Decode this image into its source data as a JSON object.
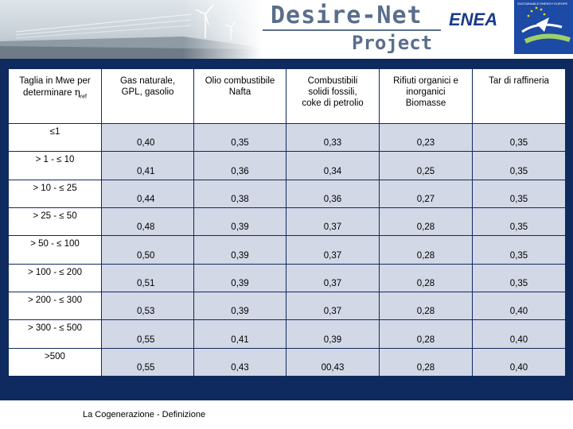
{
  "header": {
    "title_line1": "Desire-Net",
    "title_line2": "Project",
    "partner_logo": "ENEA",
    "eu_logo_caption": "SUSTAINABLE ENERGY EUROPE"
  },
  "table": {
    "first_header_line1": "Taglia in Mwe per",
    "first_header_line2_prefix": "determinare ",
    "first_header_symbol": "η",
    "first_header_subscript": "ref",
    "columns": [
      [
        "Gas naturale,",
        "GPL, gasolio"
      ],
      [
        "Olio combustibile",
        "Nafta"
      ],
      [
        "Combustibili",
        "solidi fossili,",
        "coke di petrolio"
      ],
      [
        "Rifiuti organici e",
        "inorganici",
        "Biomasse"
      ],
      [
        "Tar di raffineria"
      ]
    ],
    "rows": [
      {
        "label": "≤1",
        "values": [
          "0,40",
          "0,35",
          "0,33",
          "0,23",
          "0,35"
        ]
      },
      {
        "label": "> 1 - ≤ 10",
        "values": [
          "0,41",
          "0,36",
          "0,34",
          "0,25",
          "0,35"
        ]
      },
      {
        "label": "> 10 - ≤ 25",
        "values": [
          "0,44",
          "0,38",
          "0,36",
          "0,27",
          "0,35"
        ]
      },
      {
        "label": "> 25 - ≤ 50",
        "values": [
          "0,48",
          "0,39",
          "0,37",
          "0,28",
          "0,35"
        ]
      },
      {
        "label": "> 50 - ≤ 100",
        "values": [
          "0,50",
          "0,39",
          "0,37",
          "0,28",
          "0,35"
        ]
      },
      {
        "label": "> 100 - ≤ 200",
        "values": [
          "0,51",
          "0,39",
          "0,37",
          "0,28",
          "0,35"
        ]
      },
      {
        "label": "> 200 - ≤ 300",
        "values": [
          "0,53",
          "0,39",
          "0,37",
          "0,28",
          "0,40"
        ]
      },
      {
        "label": "> 300 - ≤ 500",
        "values": [
          "0,55",
          "0,41",
          "0,39",
          "0,28",
          "0,40"
        ]
      },
      {
        "label": ">500",
        "values": [
          "0,55",
          "0,43",
          "00,43",
          "0,28",
          "0,40"
        ]
      }
    ]
  },
  "footer": {
    "text": "La Cogenerazione - Definizione"
  },
  "colors": {
    "panel_background": "#0f2a5e",
    "value_cell": "#d3d8e6",
    "title_text": "#5a6e8c",
    "enea_blue": "#1a3a8a",
    "eu_blue": "#1c4aa5"
  }
}
